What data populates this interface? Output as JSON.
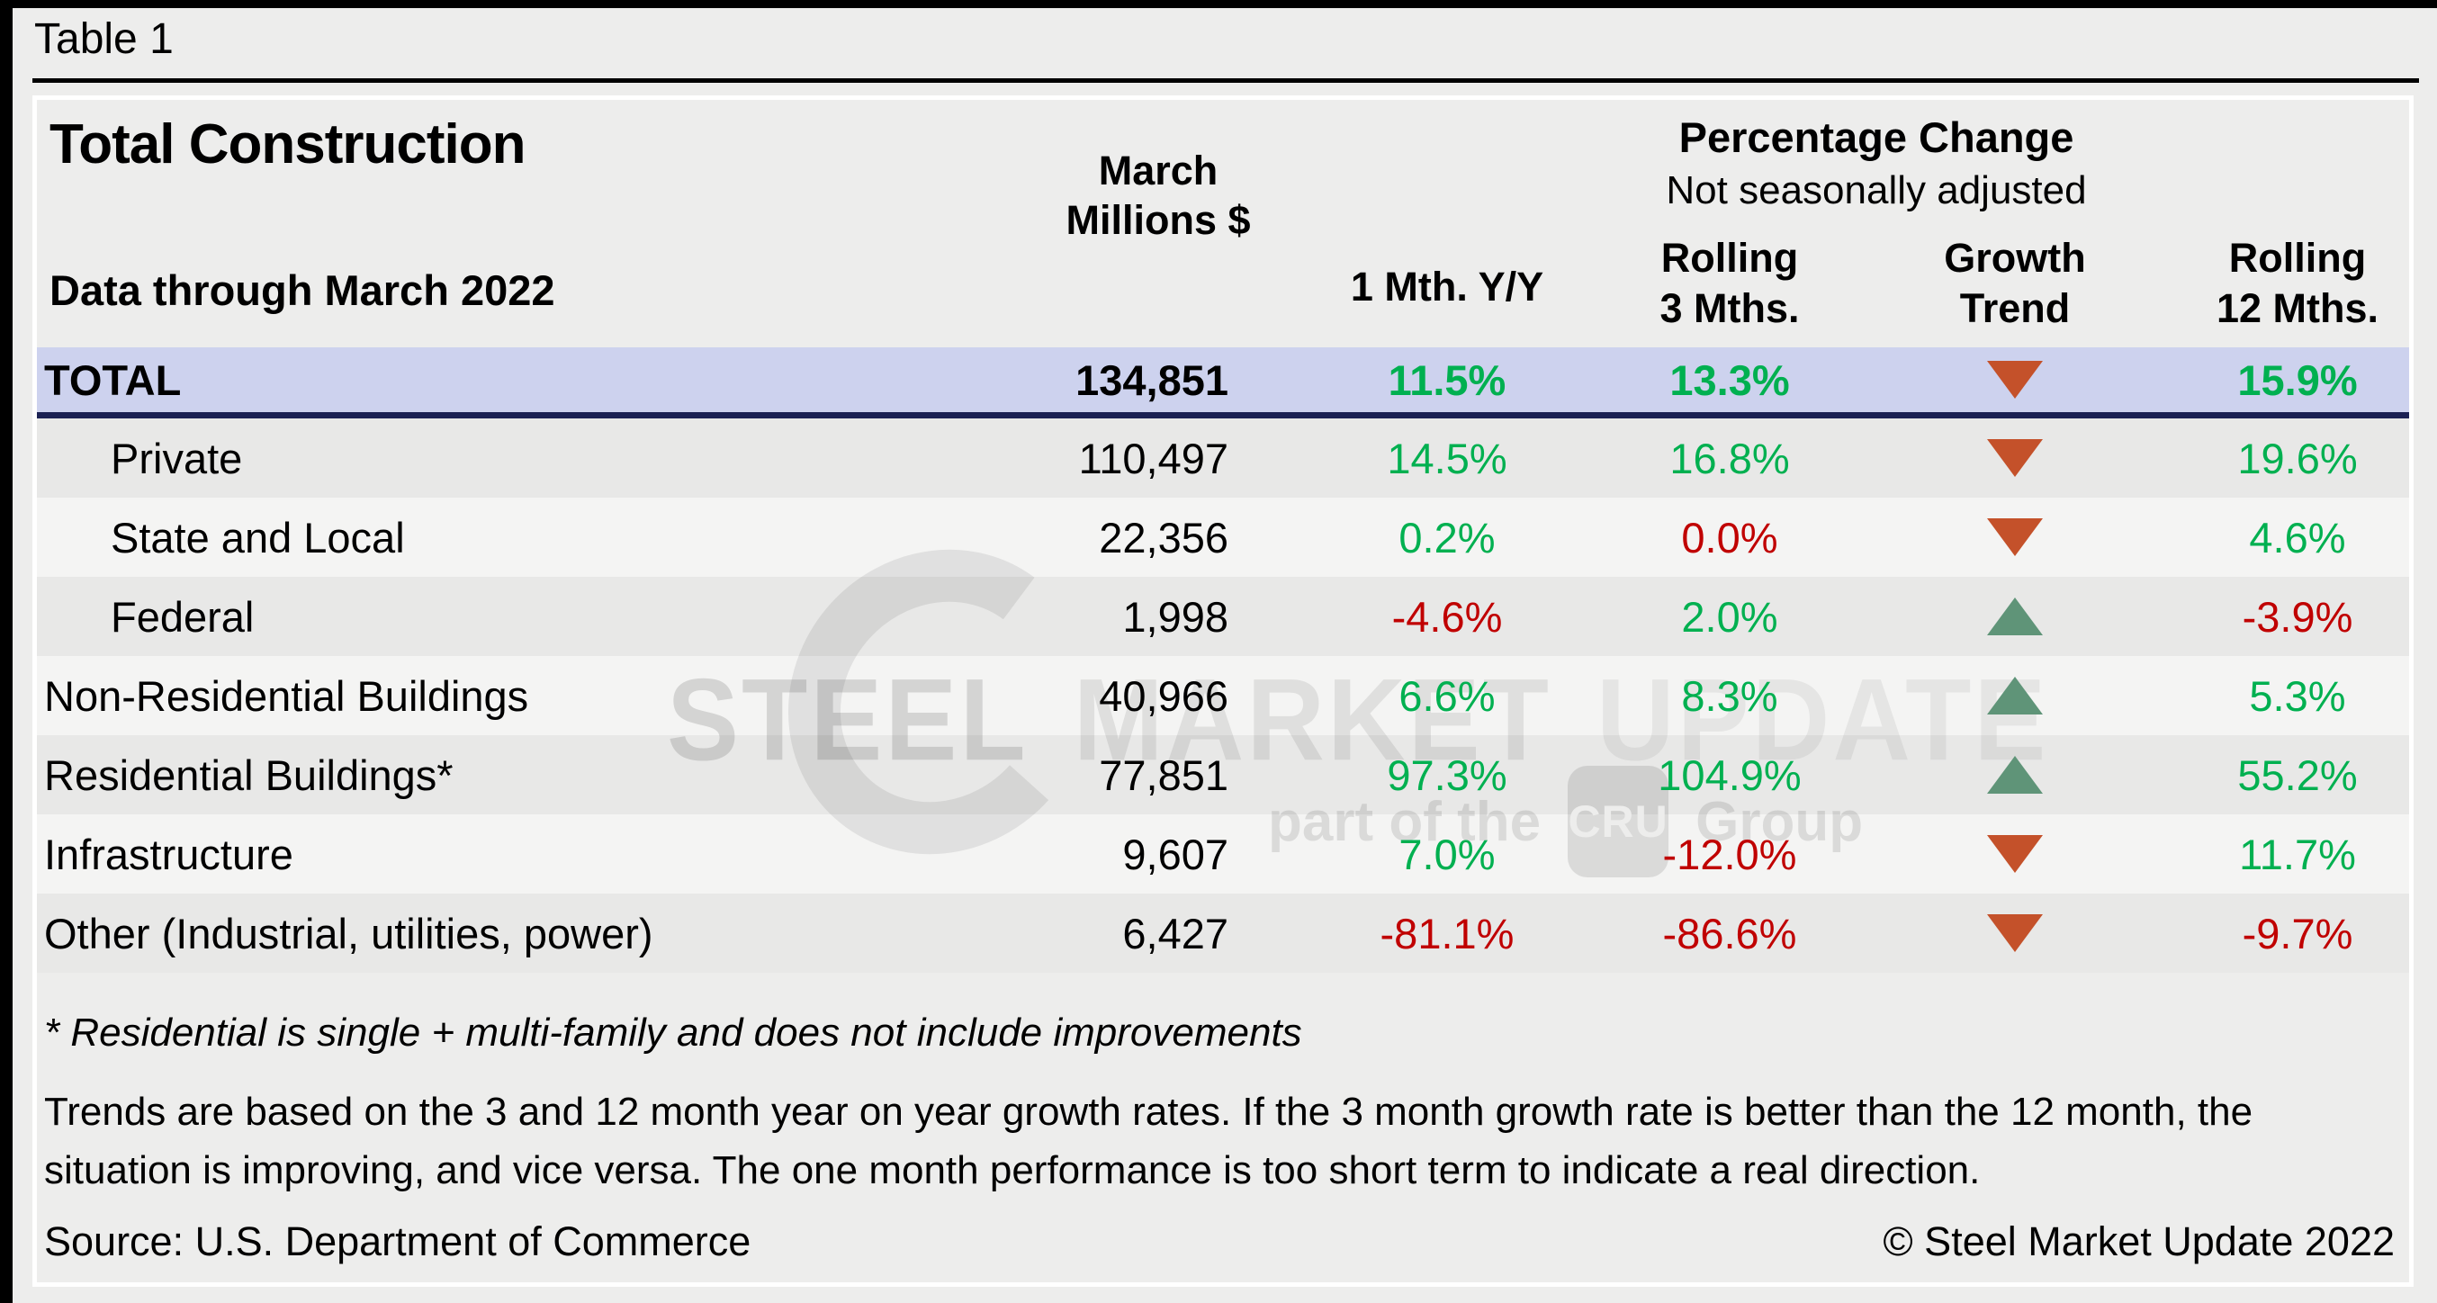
{
  "page": {
    "table_label": "Table 1"
  },
  "header": {
    "title": "Total Construction",
    "subtitle": "Data through March 2022",
    "millions_col_line1": "March",
    "millions_col_line2": "Millions $",
    "pct_group_title": "Percentage Change",
    "pct_group_sub": "Not seasonally adjusted",
    "col_1mth": "1 Mth. Y/Y",
    "col_3m_line1": "Rolling",
    "col_3m_line2": "3 Mths.",
    "col_trend_line1": "Growth",
    "col_trend_line2": "Trend",
    "col_12m_line1": "Rolling",
    "col_12m_line2": "12 Mths."
  },
  "table": {
    "rows": [
      {
        "label": "TOTAL",
        "indent": false,
        "emphasis": true,
        "millions": "134,851",
        "m1": "11.5%",
        "m1_color": "green",
        "m3": "13.3%",
        "m3_color": "green",
        "trend": "down",
        "m12": "15.9%",
        "m12_color": "green"
      },
      {
        "label": "Private",
        "indent": true,
        "emphasis": false,
        "millions": "110,497",
        "m1": "14.5%",
        "m1_color": "green",
        "m3": "16.8%",
        "m3_color": "green",
        "trend": "down",
        "m12": "19.6%",
        "m12_color": "green"
      },
      {
        "label": "State and Local",
        "indent": true,
        "emphasis": false,
        "millions": "22,356",
        "m1": "0.2%",
        "m1_color": "green",
        "m3": "0.0%",
        "m3_color": "red",
        "trend": "down",
        "m12": "4.6%",
        "m12_color": "green"
      },
      {
        "label": "Federal",
        "indent": true,
        "emphasis": false,
        "millions": "1,998",
        "m1": "-4.6%",
        "m1_color": "red",
        "m3": "2.0%",
        "m3_color": "green",
        "trend": "up",
        "m12": "-3.9%",
        "m12_color": "red"
      },
      {
        "label": "Non-Residential Buildings",
        "indent": false,
        "emphasis": false,
        "millions": "40,966",
        "m1": "6.6%",
        "m1_color": "green",
        "m3": "8.3%",
        "m3_color": "green",
        "trend": "up",
        "m12": "5.3%",
        "m12_color": "green"
      },
      {
        "label": "Residential Buildings*",
        "indent": false,
        "emphasis": false,
        "millions": "77,851",
        "m1": "97.3%",
        "m1_color": "green",
        "m3": "104.9%",
        "m3_color": "green",
        "trend": "up",
        "m12": "55.2%",
        "m12_color": "green"
      },
      {
        "label": "Infrastructure",
        "indent": false,
        "emphasis": false,
        "millions": "9,607",
        "m1": "7.0%",
        "m1_color": "green",
        "m3": "-12.0%",
        "m3_color": "red",
        "trend": "down",
        "m12": "11.7%",
        "m12_color": "green"
      },
      {
        "label": "Other (Industrial, utilities, power)",
        "indent": false,
        "emphasis": false,
        "millions": "6,427",
        "m1": "-81.1%",
        "m1_color": "red",
        "m3": "-86.6%",
        "m3_color": "red",
        "trend": "down",
        "m12": "-9.7%",
        "m12_color": "red"
      }
    ]
  },
  "footer": {
    "footnote": "* Residential is single + multi-family and does not include improvements",
    "trends_note": "Trends are based on the 3 and 12 month year on year growth rates. If the 3 month growth rate is better than the 12 month, the situation is improving, and vice versa. The one month performance is too short term to indicate a real direction.",
    "source": "Source: U.S. Department of Commerce",
    "copyright": "© Steel Market Update 2022"
  },
  "watermark": {
    "word1": "STEEL",
    "word2": "MARKET",
    "word3": "UPDATE",
    "tagline_pre": "part of the",
    "badge": "CRU",
    "tagline_post": "Group"
  },
  "colors": {
    "positive_text": "#00b050",
    "negative_text": "#c00000",
    "total_row_bg": "#cdd2ee",
    "total_row_underline": "#1b2153",
    "trend_up_triangle": "#5f9478",
    "trend_down_triangle": "#c4512a",
    "stripe_dark": "#e8e8e7",
    "stripe_light": "#f4f4f3",
    "page_bg": "#ededec"
  },
  "chart_data": {
    "type": "table",
    "title": "Total Construction",
    "subtitle": "Data through March 2022",
    "column_group": {
      "label": "Percentage Change",
      "sub_label": "Not seasonally adjusted",
      "spans": [
        "1 Mth. Y/Y",
        "Rolling 3 Mths.",
        "Growth Trend",
        "Rolling 12 Mths."
      ]
    },
    "columns": [
      "Category",
      "March Millions $",
      "1 Mth. Y/Y",
      "Rolling 3 Mths.",
      "Growth Trend",
      "Rolling 12 Mths."
    ],
    "rows": [
      {
        "category": "TOTAL",
        "march_millions": 134851,
        "pct_1mth_yy": 11.5,
        "pct_rolling_3m": 13.3,
        "growth_trend": "down",
        "pct_rolling_12m": 15.9
      },
      {
        "category": "Private",
        "march_millions": 110497,
        "pct_1mth_yy": 14.5,
        "pct_rolling_3m": 16.8,
        "growth_trend": "down",
        "pct_rolling_12m": 19.6
      },
      {
        "category": "State and Local",
        "march_millions": 22356,
        "pct_1mth_yy": 0.2,
        "pct_rolling_3m": 0.0,
        "growth_trend": "down",
        "pct_rolling_12m": 4.6
      },
      {
        "category": "Federal",
        "march_millions": 1998,
        "pct_1mth_yy": -4.6,
        "pct_rolling_3m": 2.0,
        "growth_trend": "up",
        "pct_rolling_12m": -3.9
      },
      {
        "category": "Non-Residential Buildings",
        "march_millions": 40966,
        "pct_1mth_yy": 6.6,
        "pct_rolling_3m": 8.3,
        "growth_trend": "up",
        "pct_rolling_12m": 5.3
      },
      {
        "category": "Residential Buildings*",
        "march_millions": 77851,
        "pct_1mth_yy": 97.3,
        "pct_rolling_3m": 104.9,
        "growth_trend": "up",
        "pct_rolling_12m": 55.2
      },
      {
        "category": "Infrastructure",
        "march_millions": 9607,
        "pct_1mth_yy": 7.0,
        "pct_rolling_3m": -12.0,
        "growth_trend": "down",
        "pct_rolling_12m": 11.7
      },
      {
        "category": "Other (Industrial, utilities, power)",
        "march_millions": 6427,
        "pct_1mth_yy": -81.1,
        "pct_rolling_3m": -86.6,
        "growth_trend": "down",
        "pct_rolling_12m": -9.7
      }
    ]
  }
}
